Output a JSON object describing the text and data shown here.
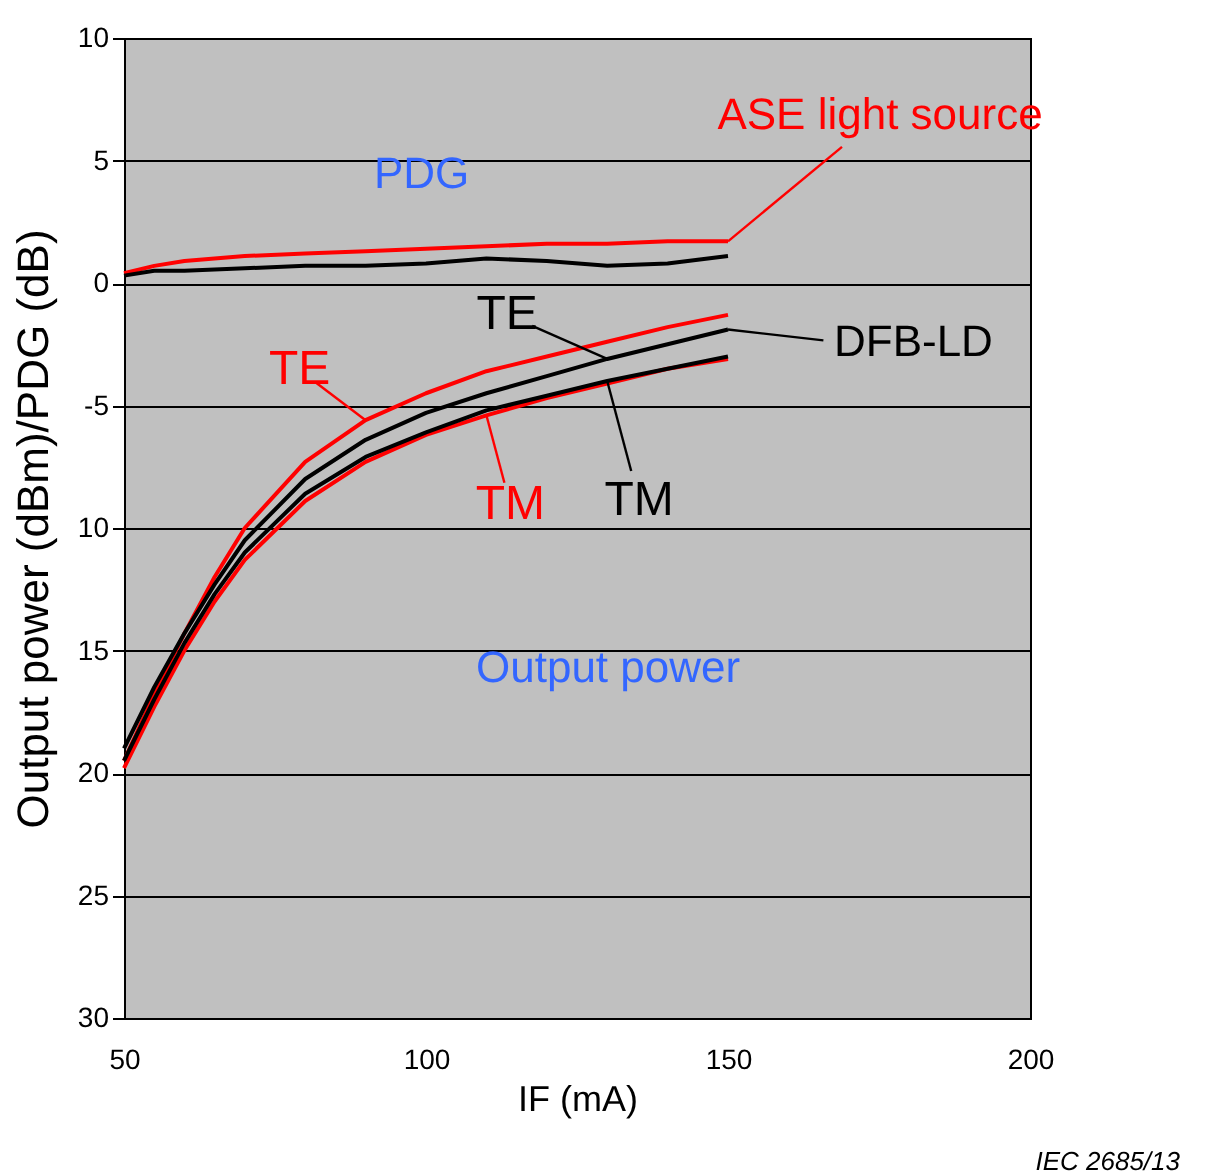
{
  "chart_data": {
    "type": "line",
    "xlabel": "IF (mA)",
    "ylabel": "Output power (dBm)/PDG (dB)",
    "xlim": [
      50,
      200
    ],
    "xticks": [
      50,
      100,
      150,
      200
    ],
    "ylim": [
      -30,
      10
    ],
    "yticks": [
      {
        "value": 10,
        "label": "10"
      },
      {
        "value": 5,
        "label": "5"
      },
      {
        "value": 0,
        "label": "0"
      },
      {
        "value": -5,
        "label": "-5"
      },
      {
        "value": -10,
        "label": "10"
      },
      {
        "value": -15,
        "label": "15"
      },
      {
        "value": -20,
        "label": "20"
      },
      {
        "value": -25,
        "label": "25"
      },
      {
        "value": -30,
        "label": "30"
      }
    ],
    "grid": "y",
    "marker": "none",
    "line_style": "solid",
    "series": [
      {
        "color": "#ff0000",
        "x": [
          50,
          55,
          60,
          70,
          80,
          90,
          100,
          110,
          120,
          130,
          140,
          150
        ],
        "values": [
          0.4,
          0.7,
          0.9,
          1.1,
          1.2,
          1.3,
          1.4,
          1.5,
          1.6,
          1.6,
          1.7,
          1.7
        ]
      },
      {
        "color": "#000000",
        "x": [
          50,
          55,
          60,
          70,
          80,
          90,
          100,
          110,
          120,
          130,
          140,
          150
        ],
        "values": [
          0.3,
          0.5,
          0.5,
          0.6,
          0.7,
          0.7,
          0.8,
          1.0,
          0.9,
          0.7,
          0.8,
          1.1
        ]
      },
      {
        "name": "TE",
        "color": "#ff0000",
        "x": [
          50,
          55,
          60,
          65,
          70,
          80,
          90,
          100,
          110,
          120,
          130,
          140,
          150
        ],
        "values": [
          -19.5,
          -16.8,
          -14.3,
          -12.0,
          -10.0,
          -7.3,
          -5.6,
          -4.5,
          -3.6,
          -3.0,
          -2.4,
          -1.8,
          -1.3
        ]
      },
      {
        "name": "TE",
        "color": "#000000",
        "x": [
          50,
          55,
          60,
          65,
          70,
          80,
          90,
          100,
          110,
          120,
          130,
          140,
          150
        ],
        "values": [
          -19.0,
          -16.5,
          -14.3,
          -12.3,
          -10.5,
          -8.0,
          -6.4,
          -5.3,
          -4.5,
          -3.8,
          -3.1,
          -2.5,
          -1.9
        ]
      },
      {
        "name": "TM",
        "color": "#ff0000",
        "x": [
          50,
          55,
          60,
          65,
          70,
          80,
          90,
          100,
          110,
          120,
          130,
          140,
          150
        ],
        "values": [
          -19.8,
          -17.3,
          -15.0,
          -13.0,
          -11.3,
          -8.9,
          -7.3,
          -6.2,
          -5.4,
          -4.7,
          -4.1,
          -3.5,
          -3.1
        ]
      },
      {
        "name": "TM",
        "color": "#000000",
        "x": [
          50,
          55,
          60,
          65,
          70,
          80,
          90,
          100,
          110,
          120,
          130,
          140,
          150
        ],
        "values": [
          -19.5,
          -17.0,
          -14.7,
          -12.7,
          -11.0,
          -8.6,
          -7.1,
          -6.1,
          -5.2,
          -4.6,
          -4.0,
          -3.5,
          -3.0
        ]
      }
    ],
    "annotations": [
      {
        "text": "ASE light source",
        "x": 150,
        "y": 1.7
      },
      {
        "text": "DFB-LD",
        "x": 150,
        "y": -1.9
      },
      "PDG",
      "Output power",
      "IEC  2685/13"
    ]
  }
}
